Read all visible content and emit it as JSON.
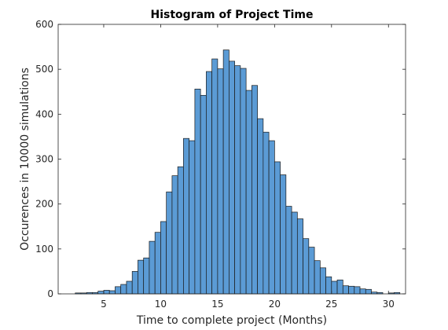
{
  "chart_data": {
    "type": "bar",
    "title": "Histogram of Project Time",
    "xlabel": "Time to complete project (Months)",
    "ylabel": "Occurences in 10000 simulations",
    "xlim": [
      1,
      31.5
    ],
    "ylim": [
      0,
      600
    ],
    "xticks": [
      5,
      10,
      15,
      20,
      25,
      30
    ],
    "yticks": [
      0,
      100,
      200,
      300,
      400,
      500,
      600
    ],
    "bin_width": 0.5,
    "bin_start": 2.5,
    "values": [
      2,
      2,
      3,
      3,
      6,
      8,
      7,
      16,
      21,
      28,
      50,
      75,
      80,
      117,
      137,
      161,
      227,
      263,
      283,
      346,
      341,
      456,
      442,
      495,
      523,
      501,
      543,
      518,
      508,
      502,
      453,
      464,
      390,
      360,
      341,
      294,
      265,
      195,
      182,
      167,
      123,
      104,
      74,
      58,
      38,
      28,
      31,
      18,
      17,
      16,
      11,
      10,
      4,
      3,
      0,
      2,
      3
    ],
    "bar_color": "#5B9BD5",
    "bar_edge_color": "#1a1a1a",
    "grid": false
  }
}
